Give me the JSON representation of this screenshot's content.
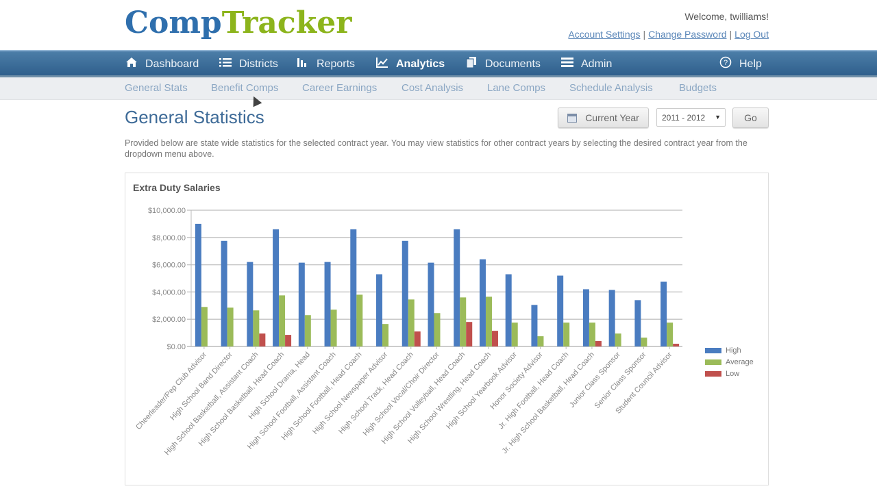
{
  "app": {
    "logo_part1": "Comp",
    "logo_part2": "Tracker",
    "welcome": "Welcome, twilliams!",
    "account_links": [
      "Account Settings",
      "Change Password",
      "Log Out"
    ]
  },
  "mainnav": {
    "items": [
      {
        "label": "Dashboard",
        "icon": "home-icon",
        "glyph": "⌂"
      },
      {
        "label": "Districts",
        "icon": "list-icon",
        "glyph": "☰"
      },
      {
        "label": "Reports",
        "icon": "bar-chart-icon",
        "glyph": "▮"
      },
      {
        "label": "Analytics",
        "icon": "line-chart-icon",
        "glyph": "⟋"
      },
      {
        "label": "Documents",
        "icon": "documents-icon",
        "glyph": "❐"
      },
      {
        "label": "Admin",
        "icon": "sliders-icon",
        "glyph": "≡"
      },
      {
        "label": "Help",
        "icon": "help-icon",
        "glyph": "?"
      }
    ],
    "active": "Analytics"
  },
  "subnav": {
    "items": [
      "General Stats",
      "Benefit Comps",
      "Career Earnings",
      "Cost Analysis",
      "Lane Comps",
      "Schedule Analysis",
      "Budgets"
    ]
  },
  "page": {
    "title": "General Statistics",
    "current_year_label": "Current Year",
    "year_select_value": "2011 - 2012",
    "go_label": "Go",
    "intro": "Provided below are state wide statistics for the selected contract year. You may view statistics for other contract years by selecting the desired contract year from the dropdown menu above."
  },
  "colors": {
    "high": "#4a7cc0",
    "average": "#9bbb59",
    "low": "#c0504d",
    "brand_blue": "#2f6fad",
    "brand_green": "#8cb41c"
  },
  "chart_data": {
    "type": "bar",
    "title": "Extra Duty Salaries",
    "xlabel": "",
    "ylabel": "",
    "ylim": [
      0,
      10000
    ],
    "yticks": [
      "$0.00",
      "$2,000.00",
      "$4,000.00",
      "$6,000.00",
      "$8,000.00",
      "$10,000.00"
    ],
    "grid": true,
    "legend_position": "right",
    "categories": [
      "Cheerleader/Pep Club Advisor",
      "High School Band Director",
      "High School Basketball, Assistant Coach",
      "High School Basketball, Head Coach",
      "High School Drama, Head",
      "High School Football, Assistant Coach",
      "High School Football, Head Coach",
      "High School Newspaper Advisor",
      "High School Track, Head Coach",
      "High School Vocal/Choir Director",
      "High School Volleyball, Head Coach",
      "High School Wrestling, Head Coach",
      "High School Yearbook Advisor",
      "Honor Society Advisor",
      "Jr. High Football, Head Coach",
      "Jr. High School Basketball, Head Coach",
      "Junior Class Sponsor",
      "Senior Class Sponsor",
      "Student Council Advisor"
    ],
    "series": [
      {
        "name": "High",
        "values": [
          9000,
          7750,
          6200,
          8600,
          6150,
          6200,
          8600,
          5300,
          7750,
          6150,
          8600,
          6400,
          5300,
          3050,
          5200,
          4200,
          4150,
          3400,
          4750
        ]
      },
      {
        "name": "Average",
        "values": [
          2900,
          2850,
          2650,
          3750,
          2300,
          2700,
          3800,
          1650,
          3450,
          2450,
          3600,
          3650,
          1750,
          750,
          1750,
          1750,
          950,
          650,
          1750
        ]
      },
      {
        "name": "Low",
        "values": [
          0,
          0,
          950,
          850,
          0,
          0,
          0,
          0,
          1100,
          0,
          1800,
          1150,
          0,
          0,
          0,
          400,
          0,
          0,
          200
        ]
      }
    ]
  }
}
